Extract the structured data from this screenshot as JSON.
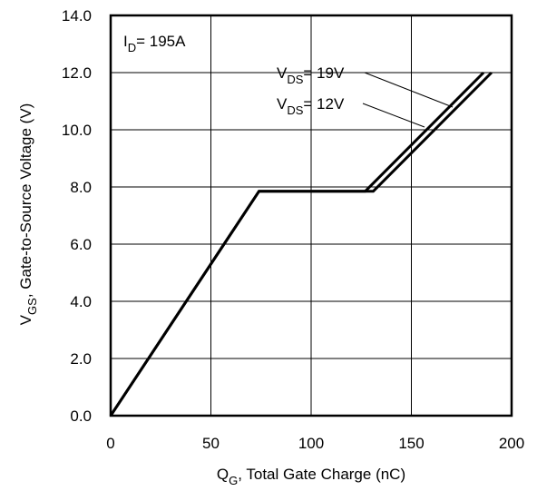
{
  "chart_data": {
    "type": "line",
    "xlabel": {
      "main": "Q",
      "sub": "G",
      "rest": ",  Total Gate Charge (nC)"
    },
    "ylabel": {
      "main": "V",
      "sub": "GS",
      "rest": ", Gate-to-Source Voltage (V)"
    },
    "xlim": [
      0,
      200
    ],
    "ylim": [
      0,
      14
    ],
    "x_ticks": [
      0,
      50,
      100,
      150,
      200
    ],
    "x_tick_labels": [
      "0",
      "50",
      "100",
      "150",
      "200"
    ],
    "y_ticks": [
      0,
      2,
      4,
      6,
      8,
      10,
      12,
      14
    ],
    "y_tick_labels": [
      "0.0",
      "2.0",
      "4.0",
      "6.0",
      "8.0",
      "10.0",
      "12.0",
      "14.0"
    ],
    "grid": true,
    "annotation": {
      "main": "I",
      "sub": "D",
      "rest": "= 195A"
    },
    "series": [
      {
        "name": "VDS= 19V",
        "label": {
          "main": "V",
          "sub": "DS",
          "rest": "= 19V"
        },
        "x": [
          0,
          74,
          131,
          190
        ],
        "y": [
          0,
          7.85,
          7.85,
          12.0
        ]
      },
      {
        "name": "VDS= 12V",
        "label": {
          "main": "V",
          "sub": "DS",
          "rest": "= 12V"
        },
        "x": [
          0,
          74,
          127,
          186
        ],
        "y": [
          0,
          7.85,
          7.85,
          12.0
        ]
      }
    ]
  }
}
